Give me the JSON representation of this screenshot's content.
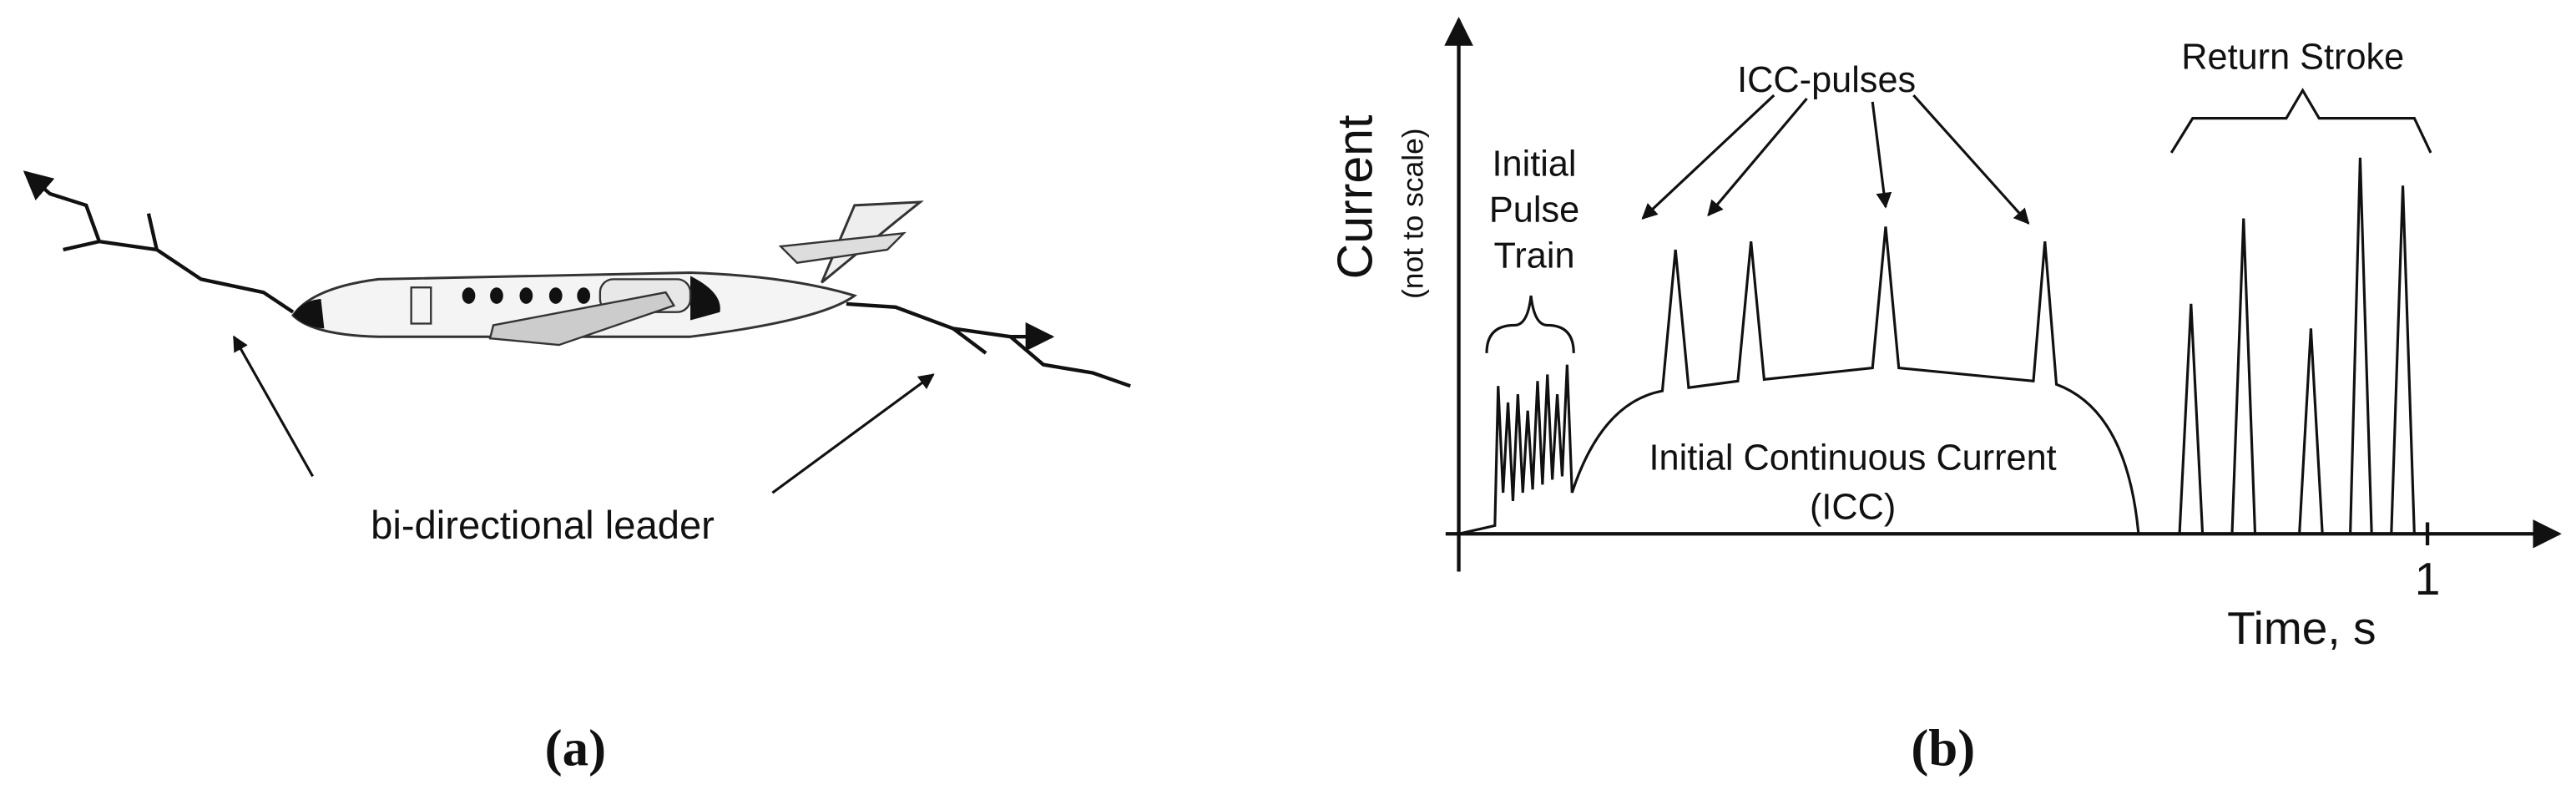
{
  "panel_a": {
    "annotation": "bi-directional leader",
    "label": "(a)"
  },
  "panel_b": {
    "y_axis_title": "Current",
    "y_axis_subtitle": "(not to scale)",
    "x_axis_title": "Time, s",
    "x_tick": "1",
    "pulse_train_label": [
      "Initial",
      "Pulse",
      "Train"
    ],
    "icc_pulses_label": "ICC-pulses",
    "return_stroke_label": "Return Stroke",
    "icc_label": [
      "Initial Continuous Current",
      "(ICC)"
    ],
    "label": "(b)"
  }
}
